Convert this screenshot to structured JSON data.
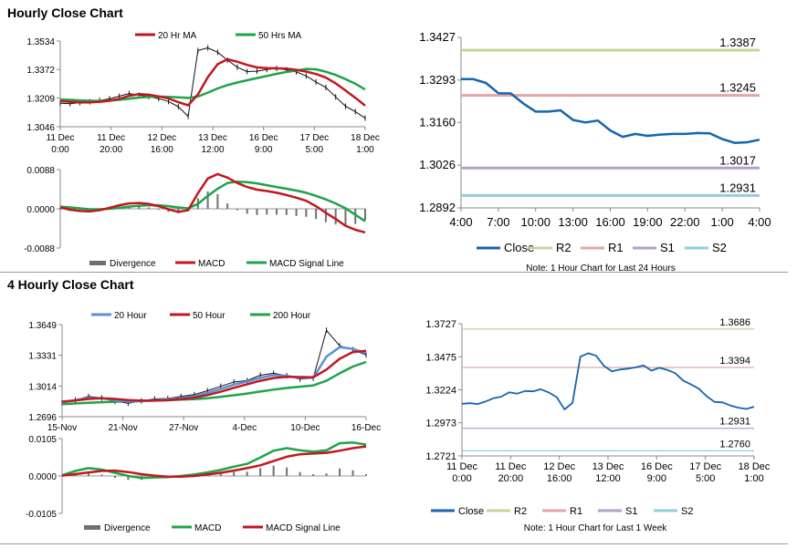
{
  "sections": {
    "hourly_title": "Hourly Close Chart",
    "four_hourly_title": "4 Hourly Close Chart"
  },
  "colors": {
    "red": "#c0181f",
    "green": "#1fa34a",
    "blue": "#5b8fd6",
    "close": "#1565b0",
    "r2": "#c4d79b",
    "r1": "#e6a5a5",
    "s1": "#b3a2c7",
    "s2": "#93cddd",
    "divergence": "#707070"
  },
  "chart_data": [
    {
      "id": "hourly_price",
      "type": "line",
      "title": "Hourly Close Chart",
      "legend": [
        "20 Hr MA",
        "50 Hrs MA"
      ],
      "yticks": [
        "1.3534",
        "1.3372",
        "1.3209",
        "1.3046"
      ],
      "ylim": [
        1.3046,
        1.3534
      ],
      "xticks": [
        [
          "11 Dec",
          "0:00"
        ],
        [
          "11 Dec",
          "20:00"
        ],
        [
          "12 Dec",
          "16:00"
        ],
        [
          "13 Dec",
          "12:00"
        ],
        [
          "16 Dec",
          "9:00"
        ],
        [
          "17 Dec",
          "5:00"
        ],
        [
          "18 Dec",
          "1:00"
        ]
      ],
      "series": [
        {
          "name": "Close",
          "values": [
            1.318,
            1.3177,
            1.3183,
            1.3188,
            1.3196,
            1.3205,
            1.322,
            1.3235,
            1.3226,
            1.3218,
            1.3206,
            1.319,
            1.316,
            1.3105,
            1.348,
            1.3495,
            1.347,
            1.3425,
            1.3385,
            1.336,
            1.3362,
            1.3372,
            1.3378,
            1.337,
            1.3358,
            1.3335,
            1.3301,
            1.327,
            1.3216,
            1.3163,
            1.3132,
            1.3095
          ]
        },
        {
          "name": "20 Hr MA",
          "values": [
            1.3192,
            1.3187,
            1.3184,
            1.3185,
            1.3188,
            1.3194,
            1.3205,
            1.3222,
            1.3232,
            1.3228,
            1.3219,
            1.3207,
            1.3186,
            1.3168,
            1.323,
            1.3328,
            1.3402,
            1.343,
            1.3416,
            1.3398,
            1.3384,
            1.338,
            1.3378,
            1.3377,
            1.337,
            1.336,
            1.3346,
            1.3326,
            1.3293,
            1.3252,
            1.3211,
            1.3166
          ]
        },
        {
          "name": "50 Hrs MA",
          "values": [
            1.32,
            1.3199,
            1.3196,
            1.3194,
            1.3193,
            1.3195,
            1.3199,
            1.3206,
            1.3212,
            1.3216,
            1.3218,
            1.3216,
            1.3213,
            1.321,
            1.3218,
            1.324,
            1.3264,
            1.3283,
            1.3298,
            1.3311,
            1.3323,
            1.3335,
            1.3347,
            1.3358,
            1.3366,
            1.3375,
            1.3373,
            1.3359,
            1.3341,
            1.3317,
            1.3291,
            1.3258
          ]
        }
      ]
    },
    {
      "id": "hourly_macd",
      "type": "line",
      "legend": [
        "Divergence",
        "MACD",
        "MACD Signal Line"
      ],
      "yticks": [
        "0.0088",
        "0.0000",
        "-0.0088"
      ],
      "ylim": [
        -0.0088,
        0.0088
      ],
      "series": [
        {
          "name": "MACD",
          "values": [
            0.0003,
            -0.0002,
            -0.0005,
            -0.0006,
            -0.0003,
            0.0002,
            0.0008,
            0.0012,
            0.0013,
            0.0011,
            0.0006,
            -0.0001,
            -0.0007,
            -0.0003,
            0.0035,
            0.0068,
            0.0078,
            0.007,
            0.0058,
            0.0049,
            0.0043,
            0.004,
            0.0036,
            0.0031,
            0.0025,
            0.0018,
            0.0006,
            -0.0009,
            -0.0023,
            -0.0038,
            -0.0047,
            -0.0053
          ]
        },
        {
          "name": "MACD Signal Line",
          "values": [
            0.0005,
            0.0003,
            0.0001,
            -0.0001,
            -0.0001,
            0.0,
            0.0002,
            0.0005,
            0.0007,
            0.0008,
            0.0008,
            0.0006,
            0.0003,
            0.0001,
            0.0011,
            0.0029,
            0.0045,
            0.0058,
            0.0061,
            0.006,
            0.0057,
            0.0053,
            0.0049,
            0.0045,
            0.0041,
            0.0036,
            0.0029,
            0.0021,
            0.0012,
            0.0001,
            -0.0013,
            -0.0028
          ]
        },
        {
          "name": "Divergence",
          "values": [
            -0.0002,
            -0.0005,
            -0.0006,
            -0.0005,
            -0.0002,
            0.0002,
            0.0006,
            0.0007,
            0.0006,
            0.0003,
            -0.0002,
            -0.0007,
            -0.001,
            -0.0004,
            0.0024,
            0.0039,
            0.0033,
            0.0012,
            -0.0003,
            -0.0011,
            -0.0014,
            -0.0013,
            -0.0013,
            -0.0014,
            -0.0016,
            -0.0018,
            -0.0023,
            -0.003,
            -0.0035,
            -0.0039,
            -0.0034,
            -0.0025
          ]
        }
      ]
    },
    {
      "id": "hourly_levels",
      "type": "line",
      "yticks": [
        "1.3427",
        "1.3293",
        "1.3160",
        "1.3026",
        "1.2892"
      ],
      "ylim": [
        1.2892,
        1.3427
      ],
      "xticks": [
        "4:00",
        "7:00",
        "10:00",
        "13:00",
        "16:00",
        "19:00",
        "22:00",
        "1:00",
        "4:00"
      ],
      "levels": [
        {
          "name": "R2",
          "value": 1.3387,
          "label": "1.3387"
        },
        {
          "name": "R1",
          "value": 1.3245,
          "label": "1.3245"
        },
        {
          "name": "S1",
          "value": 1.3017,
          "label": "1.3017"
        },
        {
          "name": "S2",
          "value": 1.2931,
          "label": "1.2931"
        }
      ],
      "series": [
        {
          "name": "Close",
          "values": [
            1.3296,
            1.3296,
            1.3284,
            1.3252,
            1.3251,
            1.322,
            1.3194,
            1.3194,
            1.3198,
            1.3168,
            1.316,
            1.3166,
            1.3135,
            1.3115,
            1.3124,
            1.3118,
            1.3122,
            1.3124,
            1.3124,
            1.3127,
            1.3126,
            1.3108,
            1.3096,
            1.3098,
            1.3106
          ]
        }
      ],
      "legend": [
        "Close",
        "R2",
        "R1",
        "S1",
        "S2"
      ],
      "note": "Note: 1 Hour Chart for Last 24 Hours"
    },
    {
      "id": "four_hourly_price",
      "type": "line",
      "title": "4 Hourly Close Chart",
      "legend": [
        "20 Hour",
        "50 Hour",
        "200 Hour"
      ],
      "yticks": [
        "1.3649",
        "1.3331",
        "1.3014",
        "1.2696"
      ],
      "ylim": [
        1.2696,
        1.3649
      ],
      "xticks": [
        "15-Nov",
        "21-Nov",
        "27-Nov",
        "4-Dec",
        "10-Dec",
        "16-Dec"
      ],
      "series": [
        {
          "name": "Close",
          "values": [
            1.284,
            1.287,
            1.2905,
            1.289,
            1.2855,
            1.2835,
            1.286,
            1.288,
            1.2885,
            1.2905,
            1.2925,
            1.2965,
            1.301,
            1.3055,
            1.307,
            1.3125,
            1.3145,
            1.312,
            1.3085,
            1.3095,
            1.359,
            1.343,
            1.339,
            1.3335
          ]
        },
        {
          "name": "20 Hour",
          "values": [
            1.2845,
            1.2868,
            1.289,
            1.2888,
            1.2868,
            1.2852,
            1.2856,
            1.2867,
            1.2876,
            1.289,
            1.2908,
            1.2942,
            1.2985,
            1.3028,
            1.306,
            1.3098,
            1.3126,
            1.3118,
            1.3098,
            1.3098,
            1.3318,
            1.3415,
            1.3398,
            1.3352
          ]
        },
        {
          "name": "50 Hour",
          "values": [
            1.2852,
            1.2864,
            1.288,
            1.2887,
            1.288,
            1.2868,
            1.2862,
            1.2862,
            1.2868,
            1.2878,
            1.2893,
            1.292,
            1.2955,
            1.2995,
            1.3032,
            1.3068,
            1.3096,
            1.3108,
            1.3106,
            1.3104,
            1.3184,
            1.3295,
            1.3365,
            1.3378
          ]
        },
        {
          "name": "200 Hour",
          "values": [
            1.2825,
            1.2833,
            1.284,
            1.2846,
            1.2851,
            1.2856,
            1.286,
            1.2863,
            1.2866,
            1.2872,
            1.2878,
            1.2888,
            1.2902,
            1.2918,
            1.2936,
            1.2956,
            1.2976,
            1.2993,
            1.3006,
            1.302,
            1.3068,
            1.3145,
            1.3215,
            1.3262
          ]
        }
      ]
    },
    {
      "id": "four_hourly_macd",
      "type": "line",
      "legend": [
        "Divergence",
        "MACD",
        "MACD Signal Line"
      ],
      "yticks": [
        "0.0105",
        "0.0000",
        "-0.0105"
      ],
      "ylim": [
        -0.0105,
        0.0105
      ],
      "series": [
        {
          "name": "MACD",
          "values": [
            0.0002,
            0.0014,
            0.0022,
            0.0018,
            0.0009,
            0.0,
            -0.0006,
            -0.0004,
            -0.0003,
            0.0,
            0.0004,
            0.001,
            0.0017,
            0.0026,
            0.0034,
            0.0052,
            0.0071,
            0.0078,
            0.0072,
            0.0068,
            0.0072,
            0.0092,
            0.0094,
            0.0088
          ]
        },
        {
          "name": "MACD Signal Line",
          "values": [
            0.0001,
            0.0005,
            0.001,
            0.0014,
            0.0015,
            0.0011,
            0.0005,
            0.0001,
            -0.0002,
            -0.0002,
            0.0,
            0.0004,
            0.0009,
            0.0015,
            0.0022,
            0.003,
            0.0042,
            0.0054,
            0.0061,
            0.0063,
            0.0065,
            0.0071,
            0.0078,
            0.0083
          ]
        },
        {
          "name": "Divergence",
          "values": [
            0.0001,
            0.0009,
            0.0012,
            0.0004,
            -0.0006,
            -0.0011,
            -0.0011,
            -0.0005,
            -0.0001,
            0.0002,
            0.0004,
            0.0006,
            0.0008,
            0.0011,
            0.0012,
            0.0022,
            0.0029,
            0.0024,
            0.0011,
            0.0005,
            0.0007,
            0.0021,
            0.0016,
            0.0005
          ]
        }
      ]
    },
    {
      "id": "weekly_levels",
      "type": "line",
      "yticks": [
        "1.3727",
        "1.3475",
        "1.3224",
        "1.2973",
        "1.2721"
      ],
      "ylim": [
        1.2721,
        1.3727
      ],
      "xticks": [
        [
          "11 Dec",
          "0:00"
        ],
        [
          "11 Dec",
          "20:00"
        ],
        [
          "12 Dec",
          "16:00"
        ],
        [
          "13 Dec",
          "12:00"
        ],
        [
          "16 Dec",
          "9:00"
        ],
        [
          "17 Dec",
          "5:00"
        ],
        [
          "18 Dec",
          "1:00"
        ]
      ],
      "levels": [
        {
          "name": "R2",
          "value": 1.3686,
          "label": "1.3686"
        },
        {
          "name": "R1",
          "value": 1.3394,
          "label": "1.3394"
        },
        {
          "name": "S1",
          "value": 1.2931,
          "label": "1.2931"
        },
        {
          "name": "S2",
          "value": 1.276,
          "label": "1.2760"
        }
      ],
      "series": [
        {
          "name": "Close",
          "values": [
            1.3118,
            1.3122,
            1.3116,
            1.3135,
            1.316,
            1.3172,
            1.3205,
            1.3195,
            1.3215,
            1.3212,
            1.3228,
            1.3204,
            1.3168,
            1.3075,
            1.3125,
            1.3476,
            1.3502,
            1.3483,
            1.3405,
            1.3365,
            1.3378,
            1.3385,
            1.3395,
            1.341,
            1.337,
            1.3392,
            1.3375,
            1.3351,
            1.3295,
            1.3265,
            1.3232,
            1.3175,
            1.3132,
            1.3128,
            1.3105,
            1.3088,
            1.3078,
            1.3095
          ]
        }
      ],
      "legend": [
        "Close",
        "R2",
        "R1",
        "S1",
        "S2"
      ],
      "note": "Note: 1 Hour Chart for Last 1 Week"
    }
  ]
}
